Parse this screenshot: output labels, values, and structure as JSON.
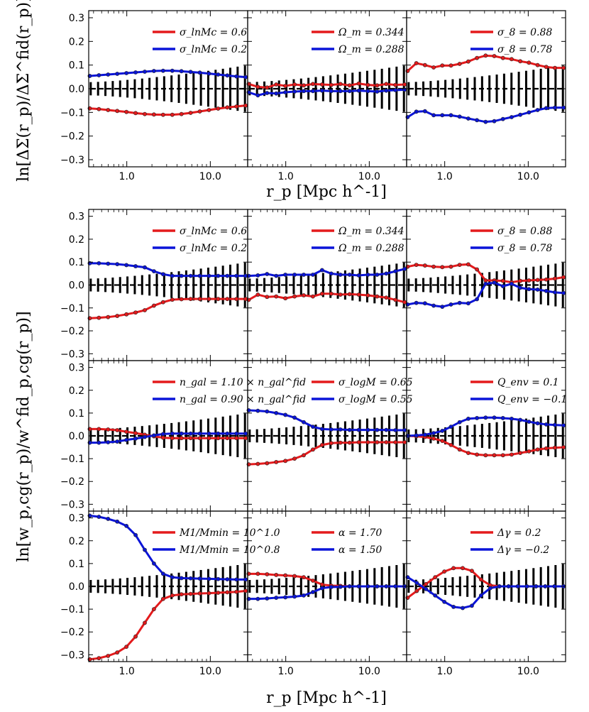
{
  "figure": {
    "top_xlabel": "r_p [Mpc h^-1]",
    "bottom_xlabel": "r_p [Mpc h^-1]",
    "top_ylabel": "ln[ΔΣ(r_p)/ΔΣ^fid(r_p)]",
    "bottom_ylabel": "ln[w_p,cg(r_p)/w^fid_p,cg(r_p)]",
    "ylim": [
      -0.33,
      0.33
    ],
    "yticks": [
      "0.3",
      "0.2",
      "0.1",
      "0.0",
      "−0.1",
      "−0.2",
      "−0.3"
    ],
    "xticks": [
      "1.0",
      "10.0"
    ],
    "colors": {
      "red": "#e41a1c",
      "blue": "#0a14d8",
      "error": "#000000"
    }
  },
  "chart_data": [
    {
      "type": "line",
      "panel": "top-1",
      "title": "",
      "xlabel": "r_p [Mpc h^-1]",
      "ylabel": "ln[ΔΣ/ΔΣfid]",
      "ylim": [
        -0.33,
        0.33
      ],
      "series": [
        {
          "name": "σ_lnMc = 0.6",
          "color": "red",
          "values": [
            -0.083,
            -0.086,
            -0.09,
            -0.094,
            -0.098,
            -0.103,
            -0.107,
            -0.109,
            -0.11,
            -0.11,
            -0.107,
            -0.102,
            -0.096,
            -0.09,
            -0.084,
            -0.079,
            -0.075,
            -0.071
          ]
        },
        {
          "name": "σ_lnMc = 0.2",
          "color": "blue",
          "values": [
            0.054,
            0.057,
            0.06,
            0.063,
            0.066,
            0.069,
            0.072,
            0.075,
            0.076,
            0.076,
            0.074,
            0.071,
            0.068,
            0.064,
            0.06,
            0.056,
            0.052,
            0.049
          ]
        }
      ]
    },
    {
      "type": "line",
      "panel": "top-2",
      "series": [
        {
          "name": "Ω_m = 0.344",
          "color": "red",
          "values": [
            0.02,
            0.008,
            0.005,
            0.018,
            0.012,
            0.018,
            0.014,
            0.02,
            0.018,
            0.016,
            0.02,
            0.014,
            0.022,
            0.016,
            0.014,
            0.02,
            0.016,
            0.018
          ]
        },
        {
          "name": "Ω_m = 0.288",
          "color": "blue",
          "values": [
            -0.015,
            -0.028,
            -0.018,
            -0.02,
            -0.015,
            -0.012,
            -0.01,
            -0.01,
            -0.008,
            -0.01,
            -0.01,
            -0.01,
            -0.008,
            -0.01,
            -0.012,
            -0.008,
            -0.006,
            -0.004
          ]
        }
      ]
    },
    {
      "type": "line",
      "panel": "top-3",
      "series": [
        {
          "name": "σ_8 = 0.88",
          "color": "red",
          "values": [
            0.075,
            0.108,
            0.1,
            0.09,
            0.098,
            0.098,
            0.105,
            0.115,
            0.13,
            0.14,
            0.138,
            0.13,
            0.125,
            0.116,
            0.11,
            0.1,
            0.092,
            0.088,
            0.088
          ]
        },
        {
          "name": "σ_8 = 0.78",
          "color": "blue",
          "values": [
            -0.12,
            -0.097,
            -0.095,
            -0.112,
            -0.112,
            -0.112,
            -0.118,
            -0.126,
            -0.133,
            -0.14,
            -0.137,
            -0.128,
            -0.12,
            -0.11,
            -0.1,
            -0.09,
            -0.082,
            -0.08,
            -0.08
          ]
        }
      ]
    },
    {
      "type": "line",
      "panel": "wp-1-1",
      "series": [
        {
          "name": "σ_lnMc = 0.6",
          "color": "red",
          "values": [
            -0.145,
            -0.143,
            -0.14,
            -0.135,
            -0.128,
            -0.12,
            -0.11,
            -0.09,
            -0.075,
            -0.064,
            -0.062,
            -0.061,
            -0.061,
            -0.061,
            -0.061,
            -0.061,
            -0.061,
            -0.061
          ]
        },
        {
          "name": "σ_lnMc = 0.2",
          "color": "blue",
          "values": [
            0.095,
            0.095,
            0.093,
            0.091,
            0.087,
            0.082,
            0.077,
            0.06,
            0.047,
            0.04,
            0.04,
            0.04,
            0.04,
            0.04,
            0.04,
            0.04,
            0.04,
            0.04
          ]
        }
      ]
    },
    {
      "type": "line",
      "panel": "wp-1-2",
      "series": [
        {
          "name": "Ω_m = 0.344",
          "color": "red",
          "values": [
            -0.065,
            -0.042,
            -0.052,
            -0.05,
            -0.058,
            -0.05,
            -0.045,
            -0.05,
            -0.038,
            -0.038,
            -0.042,
            -0.04,
            -0.042,
            -0.045,
            -0.05,
            -0.055,
            -0.065,
            -0.075
          ]
        },
        {
          "name": "Ω_m = 0.288",
          "color": "blue",
          "values": [
            0.04,
            0.042,
            0.048,
            0.04,
            0.045,
            0.045,
            0.045,
            0.045,
            0.065,
            0.05,
            0.045,
            0.045,
            0.042,
            0.045,
            0.045,
            0.05,
            0.06,
            0.07
          ]
        }
      ]
    },
    {
      "type": "line",
      "panel": "wp-1-3",
      "series": [
        {
          "name": "σ_8 = 0.88",
          "color": "red",
          "values": [
            0.08,
            0.088,
            0.085,
            0.08,
            0.078,
            0.08,
            0.088,
            0.09,
            0.068,
            0.02,
            0.02,
            0.018,
            0.012,
            0.018,
            0.02,
            0.022,
            0.024,
            0.028,
            0.034
          ]
        },
        {
          "name": "σ_8 = 0.78",
          "color": "blue",
          "values": [
            -0.085,
            -0.078,
            -0.08,
            -0.09,
            -0.095,
            -0.085,
            -0.078,
            -0.08,
            -0.062,
            0.005,
            0.01,
            -0.005,
            0.005,
            -0.012,
            -0.018,
            -0.02,
            -0.026,
            -0.032,
            -0.035
          ]
        }
      ]
    },
    {
      "type": "line",
      "panel": "wp-2-1",
      "series": [
        {
          "name": "n_gal = 1.10 × n_gal^fid",
          "color": "red",
          "values": [
            0.03,
            0.03,
            0.028,
            0.025,
            0.018,
            0.012,
            0.005,
            -0.002,
            -0.008,
            -0.01,
            -0.01,
            -0.01,
            -0.01,
            -0.01,
            -0.01,
            -0.01,
            -0.01,
            -0.01
          ]
        },
        {
          "name": "n_gal = 0.90 × n_gal^fid",
          "color": "blue",
          "values": [
            -0.03,
            -0.03,
            -0.028,
            -0.025,
            -0.018,
            -0.012,
            -0.005,
            0.002,
            0.008,
            0.01,
            0.01,
            0.01,
            0.01,
            0.01,
            0.01,
            0.01,
            0.01,
            0.01
          ]
        }
      ]
    },
    {
      "type": "line",
      "panel": "wp-2-2",
      "series": [
        {
          "name": "σ_logM = 0.65",
          "color": "red",
          "values": [
            -0.125,
            -0.123,
            -0.12,
            -0.115,
            -0.11,
            -0.1,
            -0.085,
            -0.06,
            -0.04,
            -0.032,
            -0.03,
            -0.03,
            -0.028,
            -0.028,
            -0.028,
            -0.028,
            -0.028,
            -0.028
          ]
        },
        {
          "name": "σ_logM = 0.55",
          "color": "blue",
          "values": [
            0.112,
            0.11,
            0.107,
            0.1,
            0.092,
            0.08,
            0.06,
            0.04,
            0.03,
            0.028,
            0.028,
            0.026,
            0.026,
            0.026,
            0.026,
            0.026,
            0.025,
            0.025
          ]
        }
      ]
    },
    {
      "type": "line",
      "panel": "wp-2-3",
      "series": [
        {
          "name": "Q_env = 0.1",
          "color": "red",
          "values": [
            0,
            -0.002,
            -0.005,
            -0.012,
            -0.022,
            -0.04,
            -0.06,
            -0.075,
            -0.082,
            -0.085,
            -0.085,
            -0.085,
            -0.082,
            -0.075,
            -0.068,
            -0.06,
            -0.055,
            -0.052,
            -0.05
          ]
        },
        {
          "name": "Q_env = −0.1",
          "color": "blue",
          "values": [
            0,
            0.002,
            0.005,
            0.012,
            0.022,
            0.04,
            0.06,
            0.075,
            0.078,
            0.08,
            0.08,
            0.078,
            0.075,
            0.07,
            0.062,
            0.055,
            0.05,
            0.048,
            0.046
          ]
        }
      ]
    },
    {
      "type": "line",
      "panel": "wp-3-1",
      "series": [
        {
          "name": "M1/Mmin = 10^1.0",
          "color": "red",
          "values": [
            -0.32,
            -0.315,
            -0.305,
            -0.29,
            -0.265,
            -0.22,
            -0.16,
            -0.1,
            -0.055,
            -0.04,
            -0.035,
            -0.033,
            -0.031,
            -0.03,
            -0.028,
            -0.026,
            -0.024,
            -0.02
          ]
        },
        {
          "name": "M1/Mmin = 10^0.8",
          "color": "blue",
          "values": [
            0.31,
            0.305,
            0.296,
            0.284,
            0.265,
            0.225,
            0.16,
            0.1,
            0.055,
            0.04,
            0.036,
            0.035,
            0.034,
            0.033,
            0.032,
            0.031,
            0.03,
            0.03
          ]
        }
      ]
    },
    {
      "type": "line",
      "panel": "wp-3-2",
      "series": [
        {
          "name": "α = 1.70",
          "color": "red",
          "values": [
            0.055,
            0.055,
            0.053,
            0.05,
            0.048,
            0.045,
            0.04,
            0.025,
            0.008,
            0.003,
            0.002,
            0,
            0,
            0,
            0,
            0,
            0,
            0
          ]
        },
        {
          "name": "α = 1.50",
          "color": "blue",
          "values": [
            -0.055,
            -0.055,
            -0.053,
            -0.05,
            -0.048,
            -0.045,
            -0.04,
            -0.025,
            -0.008,
            -0.003,
            -0.002,
            0,
            0,
            0,
            0,
            0,
            0,
            0
          ]
        }
      ]
    },
    {
      "type": "line",
      "panel": "wp-3-3",
      "series": [
        {
          "name": "Δγ = 0.2",
          "color": "red",
          "values": [
            -0.05,
            -0.02,
            0.01,
            0.04,
            0.065,
            0.08,
            0.08,
            0.068,
            0.03,
            0.005,
            0,
            0,
            0,
            0,
            0,
            0,
            0,
            0
          ]
        },
        {
          "name": "Δγ = −0.2",
          "color": "blue",
          "values": [
            0.04,
            0.015,
            -0.012,
            -0.04,
            -0.068,
            -0.09,
            -0.095,
            -0.085,
            -0.04,
            -0.008,
            0,
            0,
            0,
            0,
            0,
            0,
            0,
            0
          ]
        }
      ]
    }
  ],
  "legends": {
    "top": [
      {
        "red": "σ_lnMc = 0.6",
        "blue": "σ_lnMc = 0.2"
      },
      {
        "red": "Ω_m = 0.344",
        "blue": "Ω_m = 0.288"
      },
      {
        "red": "σ_8 = 0.88",
        "blue": "σ_8 = 0.78"
      }
    ],
    "wp": [
      [
        {
          "red": "σ_lnMc = 0.6",
          "blue": "σ_lnMc = 0.2"
        },
        {
          "red": "Ω_m = 0.344",
          "blue": "Ω_m = 0.288"
        },
        {
          "red": "σ_8 = 0.88",
          "blue": "σ_8 = 0.78"
        }
      ],
      [
        {
          "red": "n_gal = 1.10 × n_gal^fid",
          "blue": "n_gal = 0.90 × n_gal^fid"
        },
        {
          "red": "σ_logM = 0.65",
          "blue": "σ_logM = 0.55"
        },
        {
          "red": "Q_env = 0.1",
          "blue": "Q_env = −0.1"
        }
      ],
      [
        {
          "red": "M1/Mmin = 10^1.0",
          "blue": "M1/Mmin = 10^0.8"
        },
        {
          "red": "α = 1.70",
          "blue": "α = 1.50"
        },
        {
          "red": "Δγ = 0.2",
          "blue": "Δγ = −0.2"
        }
      ]
    ]
  }
}
